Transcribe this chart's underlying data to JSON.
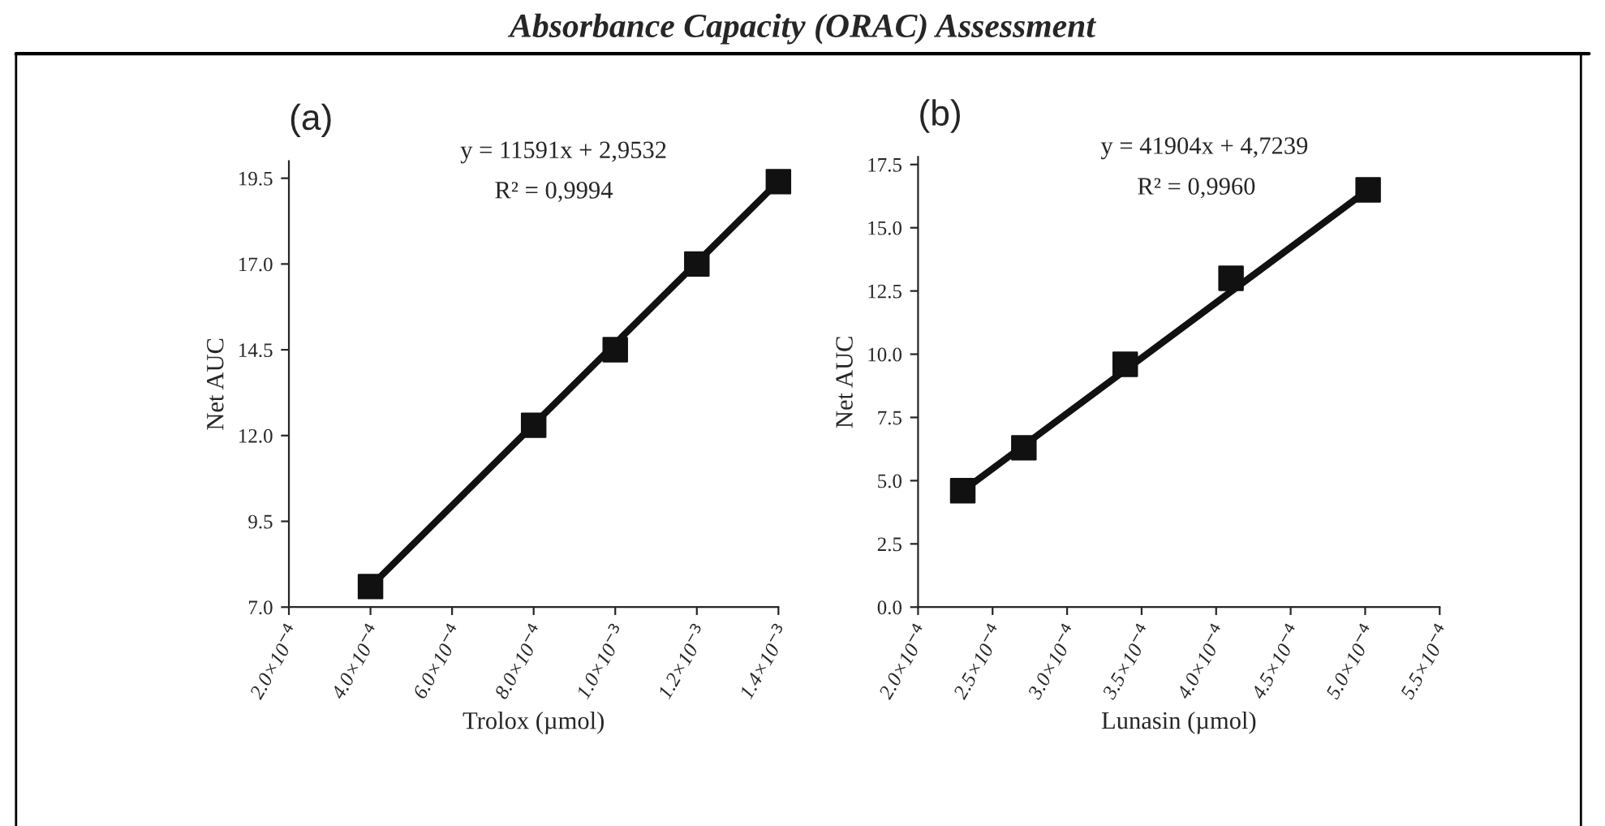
{
  "chart_data": [
    {
      "type": "scatter",
      "title": "(a)",
      "xlabel": "Trolox (µmol)",
      "ylabel": "Net AUC",
      "annotations": [
        "Absorbance Capacity (ORAC) Assessment",
        "y = 11591x + 2,9532",
        "R² = 0,9994"
      ],
      "series": [
        {
          "color": "#111111",
          "marker": "square",
          "x": [
            0.0004,
            0.0008,
            0.001,
            0.0012,
            0.0014
          ],
          "values": [
            7.6,
            12.3,
            14.5,
            17.0,
            19.4
          ]
        },
        {
          "type": "line",
          "color": "#111111",
          "line_style": "solid",
          "x": [
            0.0004,
            0.0014
          ],
          "values": [
            7.6,
            19.4
          ]
        }
      ],
      "xlim": [
        0.0002,
        0.0014
      ],
      "ylim": [
        7.0,
        20.0
      ],
      "xticks": [
        {
          "value": 0.0002,
          "label": "2.0×10$^{−4}$"
        },
        {
          "value": 0.0004,
          "label": "4.0×10$^{−4}$"
        },
        {
          "value": 0.0006,
          "label": "6.0×10$^{−4}$"
        },
        {
          "value": 0.0008,
          "label": "8.0×10$^{−4}$"
        },
        {
          "value": 0.001,
          "label": "1.0×10$^{−3}$"
        },
        {
          "value": 0.0012,
          "label": "1.2×10$^{−3}$"
        },
        {
          "value": 0.0014,
          "label": "1.4×10$^{−3}$"
        }
      ],
      "yticks": [
        {
          "value": 7.0,
          "label": "7.0"
        },
        {
          "value": 9.5,
          "label": "9.5"
        },
        {
          "value": 12.0,
          "label": "12.0"
        },
        {
          "value": 14.5,
          "label": "14.5"
        },
        {
          "value": 17.0,
          "label": "17.0"
        },
        {
          "value": 19.5,
          "label": "19.5"
        }
      ],
      "grid": false,
      "legend": false
    },
    {
      "type": "scatter",
      "title": "(b)",
      "xlabel": "Lunasin (µmol)",
      "ylabel": "Net AUC",
      "annotations": [
        "y = 41904x + 4,7239",
        "R² = 0,9960"
      ],
      "series": [
        {
          "color": "#111111",
          "marker": "square",
          "x": [
            0.00023,
            0.000271,
            0.000339,
            0.00041,
            0.000502
          ],
          "values": [
            4.6,
            6.3,
            9.6,
            13.0,
            16.5
          ]
        },
        {
          "type": "line",
          "color": "#111111",
          "line_style": "solid",
          "x": [
            0.00023,
            0.000502
          ],
          "values": [
            4.6,
            16.5
          ]
        }
      ],
      "xlim": [
        0.0002,
        0.00055
      ],
      "ylim": [
        0.0,
        17.8
      ],
      "xticks": [
        {
          "value": 0.0002,
          "label": "2.0×10$^{−4}$"
        },
        {
          "value": 0.00025,
          "label": "2.5×10$^{−4}$"
        },
        {
          "value": 0.0003,
          "label": "3.0×10$^{−4}$"
        },
        {
          "value": 0.00035,
          "label": "3.5×10$^{−4}$"
        },
        {
          "value": 0.0004,
          "label": "4.0×10$^{−4}$"
        },
        {
          "value": 0.00045,
          "label": "4.5×10$^{−4}$"
        },
        {
          "value": 0.0005,
          "label": "5.0×10$^{−4}$"
        },
        {
          "value": 0.00055,
          "label": "5.5×10$^{−4}$"
        }
      ],
      "yticks": [
        {
          "value": 0.0,
          "label": "0.0"
        },
        {
          "value": 2.5,
          "label": "2.5"
        },
        {
          "value": 5.0,
          "label": "5.0"
        },
        {
          "value": 7.5,
          "label": "7.5"
        },
        {
          "value": 10.0,
          "label": "10.0"
        },
        {
          "value": 12.5,
          "label": "12.5"
        },
        {
          "value": 15.0,
          "label": "15.0"
        },
        {
          "value": 17.5,
          "label": "17.5"
        }
      ],
      "grid": false,
      "legend": false
    }
  ]
}
